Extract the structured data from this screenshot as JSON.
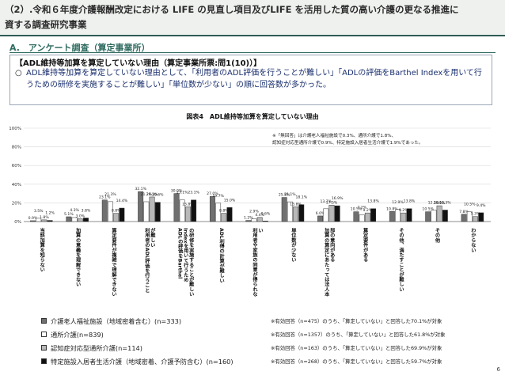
{
  "header": {
    "line1": "（2）.令和６年度介護報酬改定における LIFE の見直し項目及びLIFE を活用した質の高い介護の更なる推進に",
    "line2": "資する調査研究事業"
  },
  "section": {
    "title": "A.　アンケート調査（算定事業所）"
  },
  "summary": {
    "title": "【ADL維持等加算を算定していない理由（算定事業所票:問1(10)）】",
    "bullet": "○",
    "text": "ADL維持等加算を算定していない理由として、「利用者のADL評価を行うことが難しい」「ADLの評価をBarthel Indexを用いて行うための研修を実施することが難しい」「単位数が少ない」の順に回答数が多かった。"
  },
  "chart_title": "図表4　ADL維持等加算を算定していない理由",
  "notes": {
    "line1": "※「無回答」は介護老人福祉施設で0.3%、通所介護で1.8%、",
    "line2": "認知症対応型通所介護で0.9%、特定施設入居者生活介護で1.9%であった。"
  },
  "chart_data": {
    "type": "bar",
    "ylim": [
      0,
      100
    ],
    "yticks": [
      "0%",
      "20%",
      "40%",
      "60%",
      "80%",
      "100%"
    ],
    "colors": [
      "#707070",
      "#ffffff",
      "#b8b8b8",
      "#111111"
    ],
    "categories": [
      "当該加算を知らない",
      "加算の意義を理解できない",
      "算定要件が複雑で理解できない",
      "利用者のADL評価を行うことが難しい",
      "ADLの評価をBarthel Indexを用いて行うための研修を実施することが難しい",
      "ADL利得の計算が難しい",
      "利用者や家族の同意が得られない",
      "単位数が少ない",
      "加算の算定にあたっては法人本部の意向がある",
      "算定要件がある",
      "その他、満たすことが難しい",
      "その他",
      "わからない"
    ],
    "series": [
      {
        "name": "介護老人福祉施設（地域密着含む）(n=333)",
        "values": [
          0.9,
          5.1,
          23.1,
          32.1,
          30.0,
          27.0,
          1.2,
          25.8,
          6.0,
          10.5,
          10.8,
          10.5,
          7.8
        ]
      },
      {
        "name": "通所介護(n=839)",
        "values": [
          3.5,
          4.3,
          21.3,
          21.2,
          23.1,
          19.7,
          2.9,
          21.1,
          13.7,
          7.2,
          12.9,
          12.3,
          10.5
        ]
      },
      {
        "name": "認知症対応型通所介護(n=114)",
        "values": [
          1.8,
          3.0,
          8.8,
          26.3,
          15.8,
          8.8,
          4.4,
          15.8,
          17.5,
          9.2,
          9.2,
          16.9,
          5.3
        ]
      },
      {
        "name": "特定施設入居者生活介護（地域密着、介護予防含む）(n=160)",
        "values": [
          1.2,
          3.8,
          14.4,
          20.6,
          23.1,
          15.0,
          0.6,
          18.1,
          16.9,
          13.8,
          13.8,
          12.3,
          9.4
        ]
      }
    ]
  },
  "legend": [
    {
      "label": "介護老人福祉施設（地域密着含む）(n=333)",
      "note": "※有効回答（n=475）のうち、「算定していない」と回答した70.1%が対象"
    },
    {
      "label": "通所介護(n=839)",
      "note": "※有効回答（n=1357）のうち、「算定していない」と回答した61.8%が対象"
    },
    {
      "label": "認知症対応型通所介護(n=114)",
      "note": "※有効回答（n=163）のうち、「算定していない」と回答した69.9%が対象"
    },
    {
      "label": "特定施設入居者生活介護（地域密着、介護予防含む）(n=160)",
      "note": "※有効回答（n=268）のうち、「算定していない」と回答した59.7%が対象"
    }
  ],
  "page_number": "6"
}
